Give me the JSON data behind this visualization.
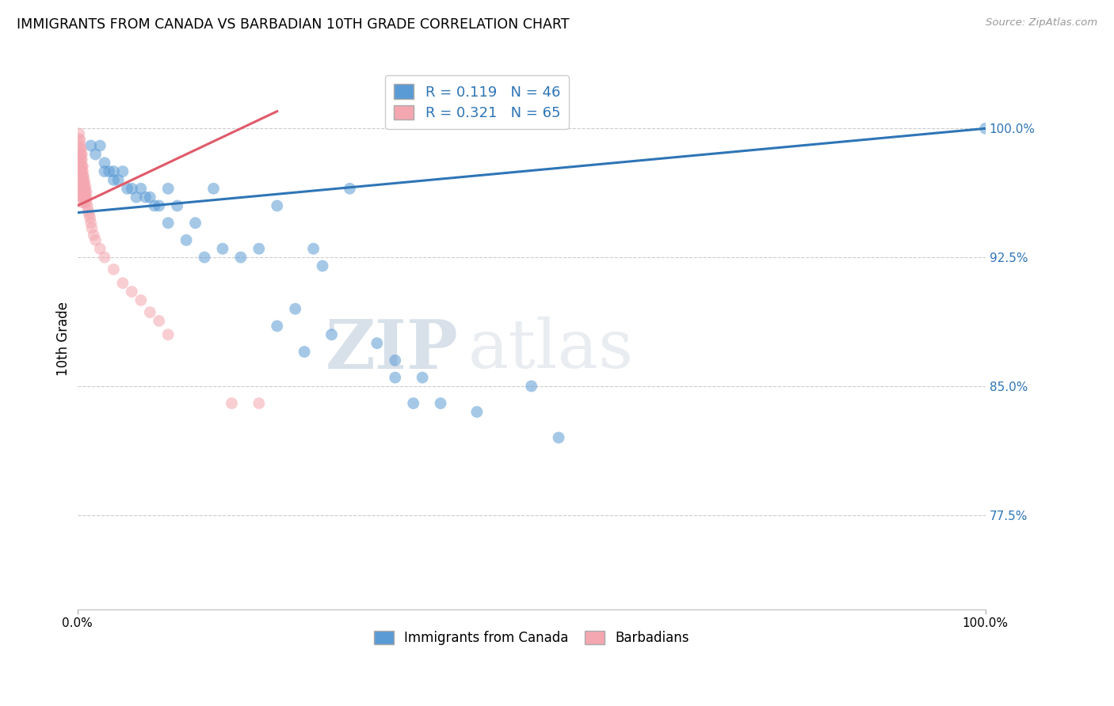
{
  "title": "IMMIGRANTS FROM CANADA VS BARBADIAN 10TH GRADE CORRELATION CHART",
  "source": "Source: ZipAtlas.com",
  "ylabel": "10th Grade",
  "ytick_labels": [
    "100.0%",
    "92.5%",
    "85.0%",
    "77.5%"
  ],
  "ytick_values": [
    1.0,
    0.925,
    0.85,
    0.775
  ],
  "xlim": [
    0.0,
    1.0
  ],
  "ylim": [
    0.72,
    1.035
  ],
  "legend_r1": "R = 0.119   N = 46",
  "legend_r2": "R = 0.321   N = 65",
  "blue_color": "#5B9BD5",
  "pink_color": "#F4A7B0",
  "blue_line_color": "#2E75B6",
  "pink_line_color": "#E05A6A",
  "grid_color": "#CCCCCC",
  "watermark_zip": "ZIP",
  "watermark_atlas": "atlas",
  "blue_scatter_x": [
    0.015,
    0.02,
    0.025,
    0.03,
    0.03,
    0.035,
    0.04,
    0.04,
    0.045,
    0.05,
    0.055,
    0.06,
    0.065,
    0.07,
    0.075,
    0.08,
    0.085,
    0.09,
    0.1,
    0.1,
    0.11,
    0.12,
    0.13,
    0.14,
    0.15,
    0.16,
    0.18,
    0.2,
    0.22,
    0.24,
    0.26,
    0.28,
    0.3,
    0.33,
    0.35,
    0.38,
    0.4,
    0.44,
    0.5,
    0.22,
    0.25,
    0.27,
    0.35,
    0.37,
    0.53,
    1.0
  ],
  "blue_scatter_y": [
    0.99,
    0.985,
    0.99,
    0.98,
    0.975,
    0.975,
    0.975,
    0.97,
    0.97,
    0.975,
    0.965,
    0.965,
    0.96,
    0.965,
    0.96,
    0.96,
    0.955,
    0.955,
    0.965,
    0.945,
    0.955,
    0.935,
    0.945,
    0.925,
    0.965,
    0.93,
    0.925,
    0.93,
    0.955,
    0.895,
    0.93,
    0.88,
    0.965,
    0.875,
    0.855,
    0.855,
    0.84,
    0.835,
    0.85,
    0.885,
    0.87,
    0.92,
    0.865,
    0.84,
    0.82,
    1.0
  ],
  "pink_scatter_x": [
    0.002,
    0.002,
    0.003,
    0.003,
    0.003,
    0.003,
    0.003,
    0.003,
    0.004,
    0.004,
    0.004,
    0.004,
    0.004,
    0.005,
    0.005,
    0.005,
    0.005,
    0.005,
    0.005,
    0.005,
    0.005,
    0.005,
    0.005,
    0.006,
    0.006,
    0.006,
    0.006,
    0.006,
    0.006,
    0.006,
    0.007,
    0.007,
    0.007,
    0.007,
    0.007,
    0.008,
    0.008,
    0.008,
    0.008,
    0.008,
    0.009,
    0.009,
    0.009,
    0.01,
    0.01,
    0.01,
    0.011,
    0.012,
    0.013,
    0.014,
    0.015,
    0.016,
    0.018,
    0.02,
    0.025,
    0.03,
    0.04,
    0.05,
    0.06,
    0.07,
    0.08,
    0.09,
    0.1,
    0.2,
    0.17
  ],
  "pink_scatter_y": [
    0.997,
    0.994,
    0.993,
    0.99,
    0.988,
    0.985,
    0.982,
    0.979,
    0.988,
    0.985,
    0.982,
    0.978,
    0.975,
    0.985,
    0.982,
    0.978,
    0.975,
    0.972,
    0.969,
    0.966,
    0.963,
    0.96,
    0.957,
    0.978,
    0.975,
    0.972,
    0.969,
    0.966,
    0.963,
    0.96,
    0.972,
    0.969,
    0.966,
    0.963,
    0.96,
    0.969,
    0.966,
    0.963,
    0.96,
    0.957,
    0.966,
    0.963,
    0.96,
    0.963,
    0.96,
    0.957,
    0.955,
    0.952,
    0.95,
    0.948,
    0.945,
    0.942,
    0.938,
    0.935,
    0.93,
    0.925,
    0.918,
    0.91,
    0.905,
    0.9,
    0.893,
    0.888,
    0.88,
    0.84,
    0.84
  ],
  "blue_trend_x": [
    0.0,
    1.0
  ],
  "blue_trend_y": [
    0.951,
    1.0
  ],
  "pink_trend_x": [
    0.0,
    0.22
  ],
  "pink_trend_y": [
    0.955,
    1.01
  ],
  "figsize": [
    14.06,
    8.92
  ],
  "dpi": 100
}
